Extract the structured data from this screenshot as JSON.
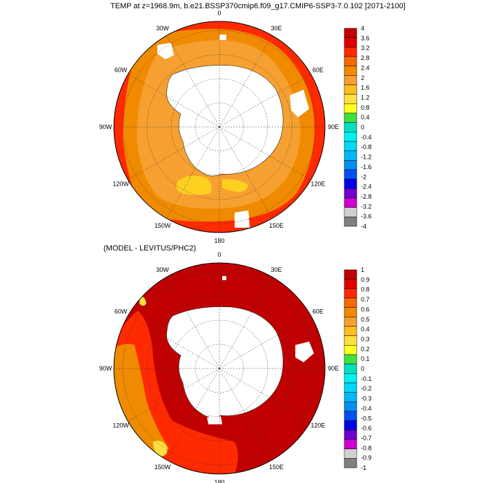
{
  "title": "TEMP at z=1968.9m, b.e21.BSSP370cmip6.f09_g17.CMIP6-SSP3-7.0.102 [2071-2100]",
  "longitude_labels": [
    "0",
    "30E",
    "60E",
    "90E",
    "120E",
    "150E",
    "180",
    "150W",
    "120W",
    "90W",
    "60W",
    "30W"
  ],
  "panels": [
    {
      "subtitle": "",
      "colorbar": {
        "labels": [
          "4",
          "3.6",
          "3.2",
          "2.8",
          "2.4",
          "2",
          "1.6",
          "1.2",
          "0.8",
          "0.4",
          "0",
          "-0.4",
          "-0.8",
          "-1.2",
          "-1.6",
          "-2",
          "-2.4",
          "-2.8",
          "-3.2",
          "-3.6",
          "-4"
        ],
        "colors": [
          "#C00000",
          "#E00000",
          "#FF2A00",
          "#F56A00",
          "#F08A00",
          "#F5A030",
          "#FFC020",
          "#FFE040",
          "#FFFF20",
          "#40E040",
          "#00E0C0",
          "#00F0F0",
          "#00D8F8",
          "#00B8F8",
          "#0090F0",
          "#0050F0",
          "#0000E0",
          "#7000D0",
          "#D000D0",
          "#D0D0D0",
          "#808080"
        ]
      }
    },
    {
      "subtitle": "(MODEL - LEVITUS/PHC2)",
      "colorbar": {
        "labels": [
          "1",
          "0.9",
          "0.8",
          "0.7",
          "0.6",
          "0.5",
          "0.4",
          "0.3",
          "0.2",
          "0.1",
          "0",
          "-0.1",
          "-0.2",
          "-0.3",
          "-0.4",
          "-0.5",
          "-0.6",
          "-0.7",
          "-0.8",
          "-0.9",
          "-1"
        ],
        "colors": [
          "#C00000",
          "#E00000",
          "#FF2A00",
          "#F56A00",
          "#F08A00",
          "#F5A030",
          "#FFC020",
          "#FFE040",
          "#FFFF20",
          "#40E040",
          "#00E0C0",
          "#00F0F0",
          "#00D8F8",
          "#00B8F8",
          "#0090F0",
          "#0050F0",
          "#0000E0",
          "#7000D0",
          "#D000D0",
          "#D0D0D0",
          "#808080"
        ]
      }
    }
  ]
}
